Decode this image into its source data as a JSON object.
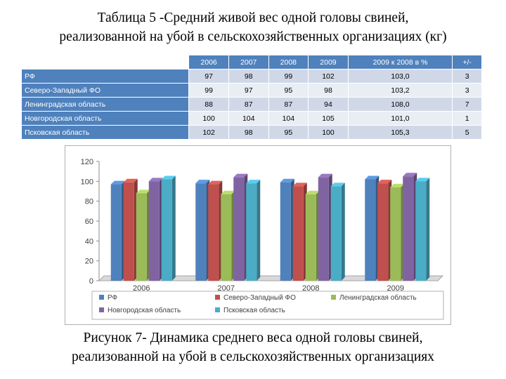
{
  "title_line1": "Таблица 5 -Средний живой вес одной головы свиней,",
  "title_line2": "реализованной на убой  в сельскохозяйственных организациях (кг)",
  "table": {
    "headers": [
      "",
      "2006",
      "2007",
      "2008",
      "2009",
      "2009 к 2008 в %",
      "+/-"
    ],
    "rows": [
      [
        "РФ",
        "97",
        "98",
        "99",
        "102",
        "103,0",
        "3"
      ],
      [
        "Северо-Западный ФО",
        "99",
        "97",
        "95",
        "98",
        "103,2",
        "3"
      ],
      [
        "Ленинградская область",
        "88",
        "87",
        "87",
        "94",
        "108,0",
        "7"
      ],
      [
        "Новгородская область",
        "100",
        "104",
        "104",
        "105",
        "101,0",
        "1"
      ],
      [
        "Псковская область",
        "102",
        "98",
        "95",
        "100",
        "105,3",
        "5"
      ]
    ]
  },
  "chart_data": {
    "type": "bar",
    "categories": [
      "2006",
      "2007",
      "2008",
      "2009"
    ],
    "series": [
      {
        "name": "РФ",
        "color": "#4f81bd",
        "values": [
          97,
          98,
          99,
          102
        ]
      },
      {
        "name": "Северо-Западный ФО",
        "color": "#c0504d",
        "values": [
          99,
          97,
          95,
          98
        ]
      },
      {
        "name": "Ленинградская область",
        "color": "#9bbb59",
        "values": [
          88,
          87,
          87,
          94
        ]
      },
      {
        "name": "Новгородская область",
        "color": "#8064a2",
        "values": [
          100,
          104,
          104,
          105
        ]
      },
      {
        "name": "Псковская область",
        "color": "#4bacc6",
        "values": [
          102,
          98,
          95,
          100
        ]
      }
    ],
    "yticks": [
      "0",
      "20",
      "40",
      "60",
      "80",
      "100",
      "120"
    ],
    "ylim": [
      0,
      120
    ],
    "legend_position": "bottom",
    "grid": false
  },
  "caption_line1": "Рисунок 7- Динамика среднего веса одной головы свиней,",
  "caption_line2": "реализованной на убой  в сельскохозяйственных организациях"
}
